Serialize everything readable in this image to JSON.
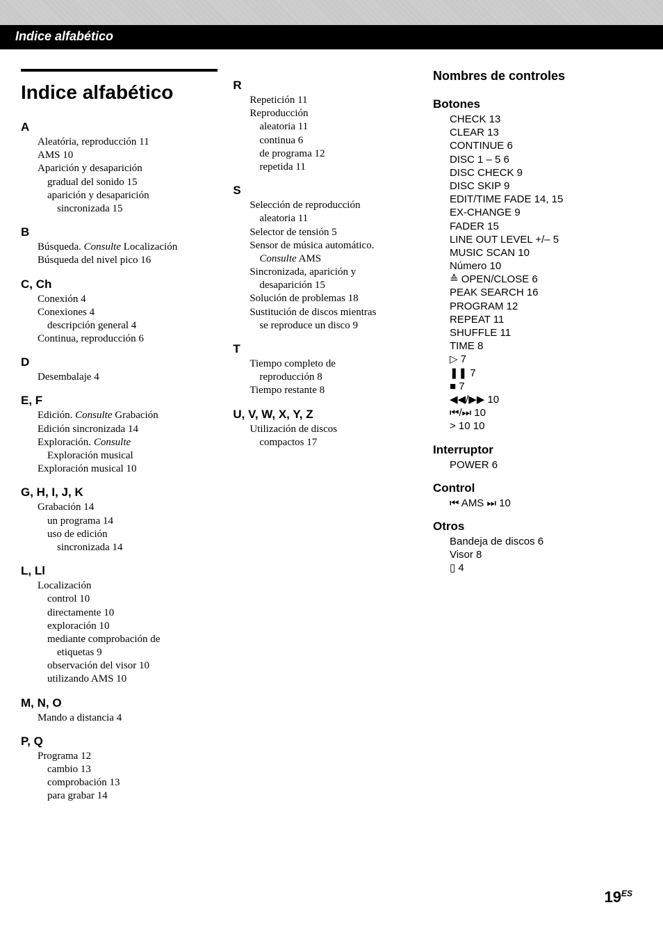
{
  "header": {
    "title": "Indice alfabético"
  },
  "main_title": "Indice alfabético",
  "col1": [
    {
      "letter": "A",
      "items": [
        {
          "t": "Aleatória, reproducción   11"
        },
        {
          "t": "AMS   10"
        },
        {
          "t": "Aparición y desaparición"
        },
        {
          "t": "gradual del sonido   15",
          "lvl": 1
        },
        {
          "t": "aparición y desaparición",
          "lvl": 1
        },
        {
          "t": "sincronizada   15",
          "lvl": 2
        }
      ]
    },
    {
      "letter": "B",
      "items": [
        {
          "t": "Búsqueda. ",
          "i": "Consulte",
          "after": " Localización"
        },
        {
          "t": "Búsqueda del nivel pico   16"
        }
      ]
    },
    {
      "letter": "C, Ch",
      "items": [
        {
          "t": "Conexión   4"
        },
        {
          "t": "Conexiones   4"
        },
        {
          "t": "descripción general   4",
          "lvl": 1
        },
        {
          "t": "Continua, reproducción   6"
        }
      ]
    },
    {
      "letter": "D",
      "items": [
        {
          "t": "Desembalaje   4"
        }
      ]
    },
    {
      "letter": "E, F",
      "items": [
        {
          "t": "Edición. ",
          "i": "Consulte",
          "after": " Grabación"
        },
        {
          "t": "Edición sincronizada   14"
        },
        {
          "t": "Exploración. ",
          "i": "Consulte"
        },
        {
          "t": "Exploración musical",
          "lvl": 1
        },
        {
          "t": "Exploración musical   10"
        }
      ]
    },
    {
      "letter": "G, H, I, J, K",
      "items": [
        {
          "t": "Grabación   14"
        },
        {
          "t": "un programa   14",
          "lvl": 1
        },
        {
          "t": "uso de edición",
          "lvl": 1
        },
        {
          "t": "sincronizada   14",
          "lvl": 2
        }
      ]
    },
    {
      "letter": "L, Ll",
      "items": [
        {
          "t": "Localización"
        },
        {
          "t": "control   10",
          "lvl": 1
        },
        {
          "t": "directamente   10",
          "lvl": 1
        },
        {
          "t": "exploración   10",
          "lvl": 1
        },
        {
          "t": "mediante comprobación de",
          "lvl": 1
        },
        {
          "t": "etiquetas   9",
          "lvl": 2
        },
        {
          "t": "observación del visor   10",
          "lvl": 1
        },
        {
          "t": "utilizando AMS   10",
          "lvl": 1
        }
      ]
    },
    {
      "letter": "M, N, O",
      "items": [
        {
          "t": "Mando a distancia   4"
        }
      ]
    },
    {
      "letter": "P, Q",
      "items": [
        {
          "t": "Programa   12"
        },
        {
          "t": "cambio   13",
          "lvl": 1
        },
        {
          "t": "comprobación   13",
          "lvl": 1
        },
        {
          "t": "para grabar   14",
          "lvl": 1
        }
      ]
    }
  ],
  "col2": [
    {
      "letter": "R",
      "items": [
        {
          "t": "Repetición   11"
        },
        {
          "t": "Reproducción"
        },
        {
          "t": "aleatoria   11",
          "lvl": 1
        },
        {
          "t": "continua   6",
          "lvl": 1
        },
        {
          "t": "de programa   12",
          "lvl": 1
        },
        {
          "t": "repetida   11",
          "lvl": 1
        }
      ]
    },
    {
      "letter": "S",
      "items": [
        {
          "t": "Selección de reproducción"
        },
        {
          "t": "aleatoria   11",
          "lvl": 1
        },
        {
          "t": "Selector de tensión   5"
        },
        {
          "t": "Sensor de música automático."
        },
        {
          "t": "",
          "i": "Consulte",
          "after": " AMS",
          "lvl": 1
        },
        {
          "t": "Sincronizada, aparición y"
        },
        {
          "t": "desaparición   15",
          "lvl": 1
        },
        {
          "t": "Solución de problemas   18"
        },
        {
          "t": "Sustitución de discos mientras"
        },
        {
          "t": "se reproduce un disco   9",
          "lvl": 1
        }
      ]
    },
    {
      "letter": "T",
      "items": [
        {
          "t": "Tiempo completo de"
        },
        {
          "t": "reproducción   8",
          "lvl": 1
        },
        {
          "t": "Tiempo restante   8"
        }
      ]
    },
    {
      "letter": "U, V, W, X, Y, Z",
      "items": [
        {
          "t": "Utilización de discos"
        },
        {
          "t": "compactos   17",
          "lvl": 1
        }
      ]
    }
  ],
  "col3": {
    "title": "Nombres de controles",
    "groups": [
      {
        "heading": "Botones",
        "items": [
          "CHECK   13",
          "CLEAR   13",
          "CONTINUE   6",
          "DISC 1 – 5   6",
          "DISC CHECK   9",
          "DISC SKIP   9",
          "EDIT/TIME FADE   14, 15",
          "EX-CHANGE   9",
          "FADER   15",
          "LINE OUT LEVEL +/–   5",
          "MUSIC SCAN   10",
          "Número   10",
          "≙ OPEN/CLOSE   6",
          "PEAK SEARCH   16",
          "PROGRAM   12",
          "REPEAT   11",
          "SHUFFLE   11",
          "TIME   8",
          "▷   7",
          "❚❚   7",
          "■   7",
          "◀◀/▶▶   10",
          "⏮/⏭   10",
          "> 10   10"
        ]
      },
      {
        "heading": "Interruptor",
        "items": [
          "POWER   6"
        ]
      },
      {
        "heading": "Control",
        "items": [
          "⏮ AMS ⏭   10"
        ]
      },
      {
        "heading": "Otros",
        "items": [
          "Bandeja de discos   6",
          "Visor   8",
          "▯   4"
        ]
      }
    ]
  },
  "page": {
    "num": "19",
    "sup": "ES"
  }
}
